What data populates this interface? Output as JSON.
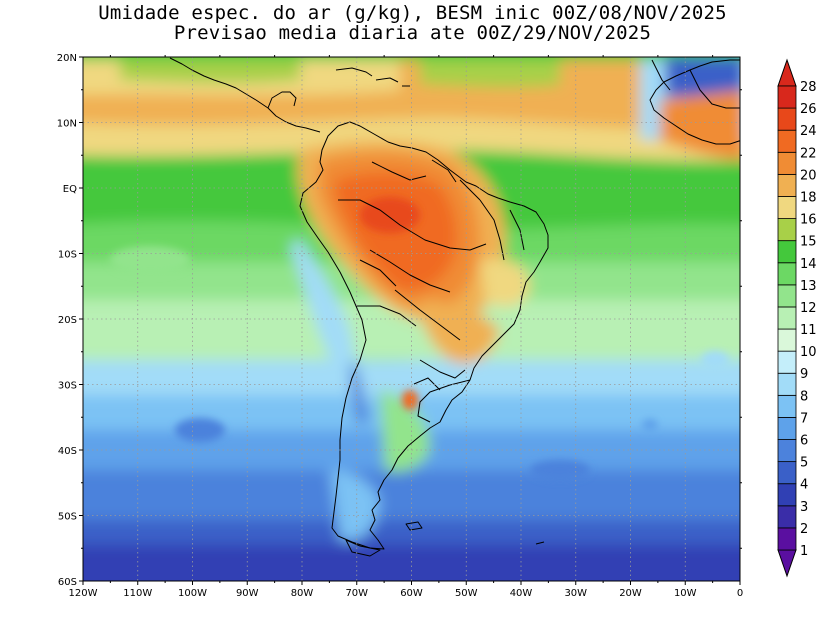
{
  "title_line1": "Umidade espec. do ar (g/kg), BESM inic 00Z/08/NOV/2025",
  "title_line2": "Previsao media diaria ate 00Z/29/NOV/2025",
  "map": {
    "lon_labels": [
      "120W",
      "110W",
      "100W",
      "90W",
      "80W",
      "70W",
      "60W",
      "50W",
      "40W",
      "30W",
      "20W",
      "10W",
      "0"
    ],
    "lat_labels": [
      "20N",
      "10N",
      "EQ",
      "10S",
      "20S",
      "30S",
      "40S",
      "50S",
      "60S"
    ],
    "lon_range": [
      -120,
      0
    ],
    "lat_range": [
      -60,
      20
    ],
    "grid": "dotted"
  },
  "colorbar": {
    "labels": [
      "1",
      "2",
      "3",
      "4",
      "5",
      "6",
      "7",
      "8",
      "9",
      "10",
      "11",
      "12",
      "13",
      "14",
      "15",
      "16",
      "18",
      "20",
      "22",
      "24",
      "26",
      "28"
    ],
    "colors": [
      "#5a0fa0",
      "#3a2da8",
      "#3040b4",
      "#3a60c8",
      "#4c82dc",
      "#5ea2ea",
      "#7cc2f4",
      "#a2dcf8",
      "#c4eefa",
      "#daf8da",
      "#b8f0b4",
      "#92e48c",
      "#6cd864",
      "#44c83c",
      "#a8d048",
      "#f0d880",
      "#f0b052",
      "#f08c34",
      "#f06a22",
      "#e8481a",
      "#d8281c"
    ],
    "extend": "both"
  }
}
